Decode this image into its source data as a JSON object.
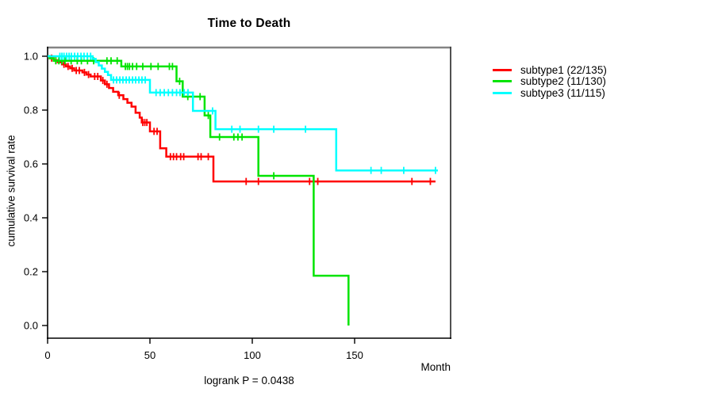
{
  "title": "Time to Death",
  "axes": {
    "xlabel": "Month",
    "ylabel": "cumulative survival rate"
  },
  "footer": "logrank P = 0.0438",
  "legend": {
    "items": [
      {
        "label": "subtype1 (22/135)",
        "color": "#ff0000"
      },
      {
        "label": "subtype2 (11/130)",
        "color": "#00e400"
      },
      {
        "label": "subtype3 (11/115)",
        "color": "#00ffff"
      }
    ]
  },
  "chart_data": {
    "type": "line",
    "variant": "kaplan-meier-step",
    "title": "Time to Death",
    "xlabel": "Month",
    "ylabel": "cumulative survival rate",
    "annotation": "logrank P = 0.0438",
    "xlim": [
      0,
      197
    ],
    "ylim": [
      0.0,
      1.0
    ],
    "xticks": [
      0,
      50,
      100,
      150
    ],
    "xtick_labels": [
      "0",
      "50",
      "100",
      "150"
    ],
    "yticks": [
      0.0,
      0.2,
      0.4,
      0.6,
      0.8,
      1.0
    ],
    "ytick_labels": [
      "0.0",
      "0.2",
      "0.4",
      "0.6",
      "0.8",
      "1.0"
    ],
    "grid": false,
    "legend_position": "right-outside",
    "series": [
      {
        "name": "subtype1 (22/135)",
        "color": "#ff0000",
        "end_month": 189.5,
        "steps": [
          [
            0,
            1.0
          ],
          [
            1,
            0.993
          ],
          [
            3,
            0.985
          ],
          [
            5,
            0.978
          ],
          [
            7,
            0.97
          ],
          [
            9,
            0.962
          ],
          [
            11,
            0.955
          ],
          [
            13,
            0.947
          ],
          [
            17,
            0.94
          ],
          [
            19,
            0.932
          ],
          [
            21,
            0.925
          ],
          [
            26,
            0.91
          ],
          [
            28,
            0.896
          ],
          [
            30,
            0.882
          ],
          [
            32,
            0.868
          ],
          [
            34.5,
            0.855
          ],
          [
            37,
            0.841
          ],
          [
            39,
            0.827
          ],
          [
            41,
            0.813
          ],
          [
            43,
            0.79
          ],
          [
            45,
            0.772
          ],
          [
            46,
            0.754
          ],
          [
            50,
            0.721
          ],
          [
            55,
            0.658
          ],
          [
            58,
            0.627
          ],
          [
            81,
            0.535
          ]
        ],
        "censors": [
          [
            2,
            0.993
          ],
          [
            4,
            0.985
          ],
          [
            8,
            0.97
          ],
          [
            10,
            0.962
          ],
          [
            12,
            0.955
          ],
          [
            14,
            0.947
          ],
          [
            15.5,
            0.947
          ],
          [
            18,
            0.94
          ],
          [
            20,
            0.932
          ],
          [
            23,
            0.925
          ],
          [
            24.5,
            0.925
          ],
          [
            27,
            0.91
          ],
          [
            29,
            0.896
          ],
          [
            35,
            0.855
          ],
          [
            46.5,
            0.754
          ],
          [
            47.5,
            0.754
          ],
          [
            48.5,
            0.754
          ],
          [
            52,
            0.721
          ],
          [
            53.5,
            0.721
          ],
          [
            60,
            0.627
          ],
          [
            61.5,
            0.627
          ],
          [
            63,
            0.627
          ],
          [
            65,
            0.627
          ],
          [
            66.5,
            0.627
          ],
          [
            73.5,
            0.627
          ],
          [
            75,
            0.627
          ],
          [
            78.5,
            0.627
          ],
          [
            97,
            0.535
          ],
          [
            103,
            0.535
          ],
          [
            128,
            0.535
          ],
          [
            132,
            0.535
          ],
          [
            178,
            0.535
          ],
          [
            187,
            0.535
          ]
        ]
      },
      {
        "name": "subtype2 (11/130)",
        "color": "#00e400",
        "end_month": 147,
        "steps": [
          [
            0,
            1.0
          ],
          [
            1,
            0.992
          ],
          [
            3,
            0.983
          ],
          [
            36,
            0.962
          ],
          [
            63,
            0.907
          ],
          [
            66,
            0.85
          ],
          [
            76.7,
            0.78
          ],
          [
            79.5,
            0.7
          ],
          [
            103,
            0.556
          ],
          [
            130,
            0.185
          ],
          [
            147,
            0.0
          ]
        ],
        "censors": [
          [
            4,
            0.983
          ],
          [
            5.5,
            0.983
          ],
          [
            7,
            0.983
          ],
          [
            8.5,
            0.983
          ],
          [
            11.5,
            0.983
          ],
          [
            14.5,
            0.983
          ],
          [
            16.5,
            0.983
          ],
          [
            19.5,
            0.983
          ],
          [
            22.5,
            0.983
          ],
          [
            29,
            0.983
          ],
          [
            31,
            0.983
          ],
          [
            34,
            0.983
          ],
          [
            38,
            0.962
          ],
          [
            39,
            0.962
          ],
          [
            40,
            0.962
          ],
          [
            41.5,
            0.962
          ],
          [
            43.5,
            0.962
          ],
          [
            46.5,
            0.962
          ],
          [
            50.5,
            0.962
          ],
          [
            54,
            0.962
          ],
          [
            59.5,
            0.962
          ],
          [
            61,
            0.962
          ],
          [
            64.5,
            0.907
          ],
          [
            68.5,
            0.85
          ],
          [
            74.5,
            0.85
          ],
          [
            78.5,
            0.78
          ],
          [
            84,
            0.7
          ],
          [
            91,
            0.7
          ],
          [
            93,
            0.7
          ],
          [
            95,
            0.7
          ],
          [
            110.5,
            0.556
          ]
        ]
      },
      {
        "name": "subtype3 (11/115)",
        "color": "#00ffff",
        "end_month": 190.7,
        "steps": [
          [
            0,
            1.0
          ],
          [
            22,
            0.99
          ],
          [
            23.5,
            0.978
          ],
          [
            25,
            0.966
          ],
          [
            26.5,
            0.954
          ],
          [
            28,
            0.942
          ],
          [
            29.5,
            0.93
          ],
          [
            31,
            0.912
          ],
          [
            50,
            0.865
          ],
          [
            71,
            0.797
          ],
          [
            82,
            0.729
          ],
          [
            141,
            0.576
          ]
        ],
        "censors": [
          [
            6,
            1.0
          ],
          [
            7,
            1.0
          ],
          [
            8,
            1.0
          ],
          [
            9.3,
            1.0
          ],
          [
            10.5,
            1.0
          ],
          [
            11.6,
            1.0
          ],
          [
            13.2,
            1.0
          ],
          [
            14.7,
            1.0
          ],
          [
            16.3,
            1.0
          ],
          [
            17.8,
            1.0
          ],
          [
            19.4,
            1.0
          ],
          [
            21,
            1.0
          ],
          [
            32.2,
            0.912
          ],
          [
            33.7,
            0.912
          ],
          [
            35.3,
            0.912
          ],
          [
            36.8,
            0.912
          ],
          [
            38.4,
            0.912
          ],
          [
            39.9,
            0.912
          ],
          [
            41.5,
            0.912
          ],
          [
            43,
            0.912
          ],
          [
            44.6,
            0.912
          ],
          [
            46.1,
            0.912
          ],
          [
            47.7,
            0.912
          ],
          [
            53,
            0.865
          ],
          [
            55,
            0.865
          ],
          [
            57,
            0.865
          ],
          [
            59,
            0.865
          ],
          [
            61,
            0.865
          ],
          [
            63,
            0.865
          ],
          [
            64.7,
            0.865
          ],
          [
            66.7,
            0.865
          ],
          [
            68.6,
            0.865
          ],
          [
            80.6,
            0.797
          ],
          [
            90,
            0.729
          ],
          [
            94,
            0.729
          ],
          [
            103,
            0.729
          ],
          [
            110.5,
            0.729
          ],
          [
            126,
            0.729
          ],
          [
            158,
            0.576
          ],
          [
            163,
            0.576
          ],
          [
            174,
            0.576
          ],
          [
            189.5,
            0.576
          ]
        ]
      }
    ]
  }
}
